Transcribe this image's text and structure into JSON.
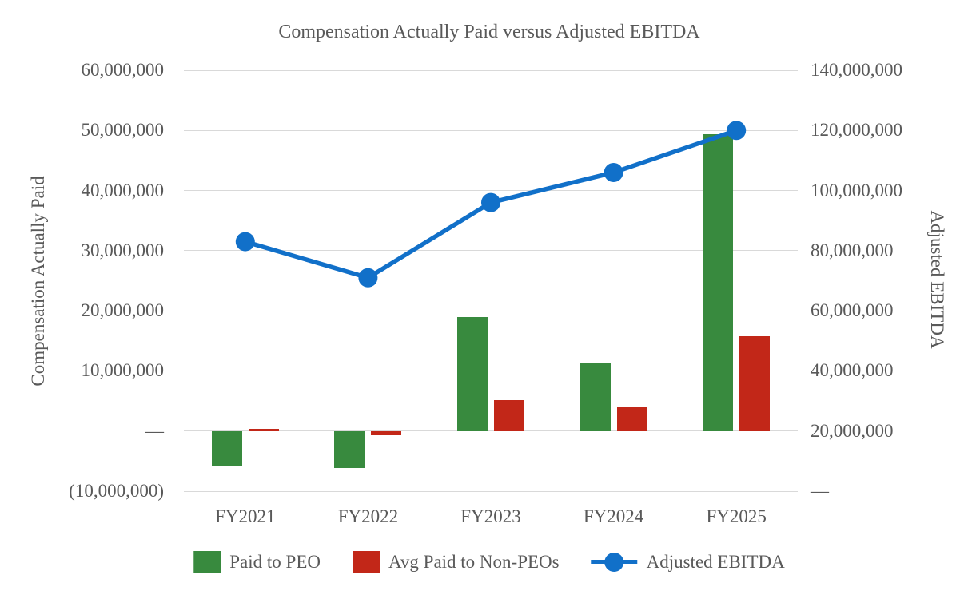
{
  "title": "Compensation Actually Paid versus Adjusted EBITDA",
  "left_axis": {
    "title": "Compensation Actually Paid",
    "ticks": [
      "60,000,000",
      "50,000,000",
      "40,000,000",
      "30,000,000",
      "20,000,000",
      "10,000,000",
      "—",
      "(10,000,000)"
    ]
  },
  "right_axis": {
    "title": "Adjusted EBITDA",
    "ticks": [
      "140,000,000",
      "120,000,000",
      "100,000,000",
      "80,000,000",
      "60,000,000",
      "40,000,000",
      "20,000,000",
      "—"
    ]
  },
  "colors": {
    "green": "#388A3E",
    "red": "#C22718",
    "blue": "#1170C9",
    "gridline": "#D9D9D9",
    "text": "#595959"
  },
  "chart_data": {
    "type": "bar+line",
    "title": "Compensation Actually Paid versus Adjusted EBITDA",
    "categories": [
      "FY2021",
      "FY2022",
      "FY2023",
      "FY2024",
      "FY2025"
    ],
    "series": [
      {
        "name": "Paid to PEO",
        "type": "bar",
        "axis": "left",
        "color": "#388A3E",
        "values": [
          -5700000,
          -6100000,
          19000000,
          11400000,
          49400000
        ]
      },
      {
        "name": "Avg Paid to Non-PEOs",
        "type": "bar",
        "axis": "left",
        "color": "#C22718",
        "values": [
          400000,
          -700000,
          5200000,
          3900000,
          15800000
        ]
      },
      {
        "name": "Adjusted EBITDA",
        "type": "line",
        "axis": "right",
        "color": "#1170C9",
        "values": [
          83000000,
          71000000,
          96000000,
          106000000,
          120000000
        ]
      }
    ],
    "left_ylabel": "Compensation Actually Paid",
    "right_ylabel": "Adjusted EBITDA",
    "left_ylim": [
      -10000000,
      60000000
    ],
    "right_ylim": [
      0,
      140000000
    ],
    "left_tick_step": 10000000,
    "right_tick_step": 20000000,
    "grid": true,
    "legend_position": "bottom"
  }
}
